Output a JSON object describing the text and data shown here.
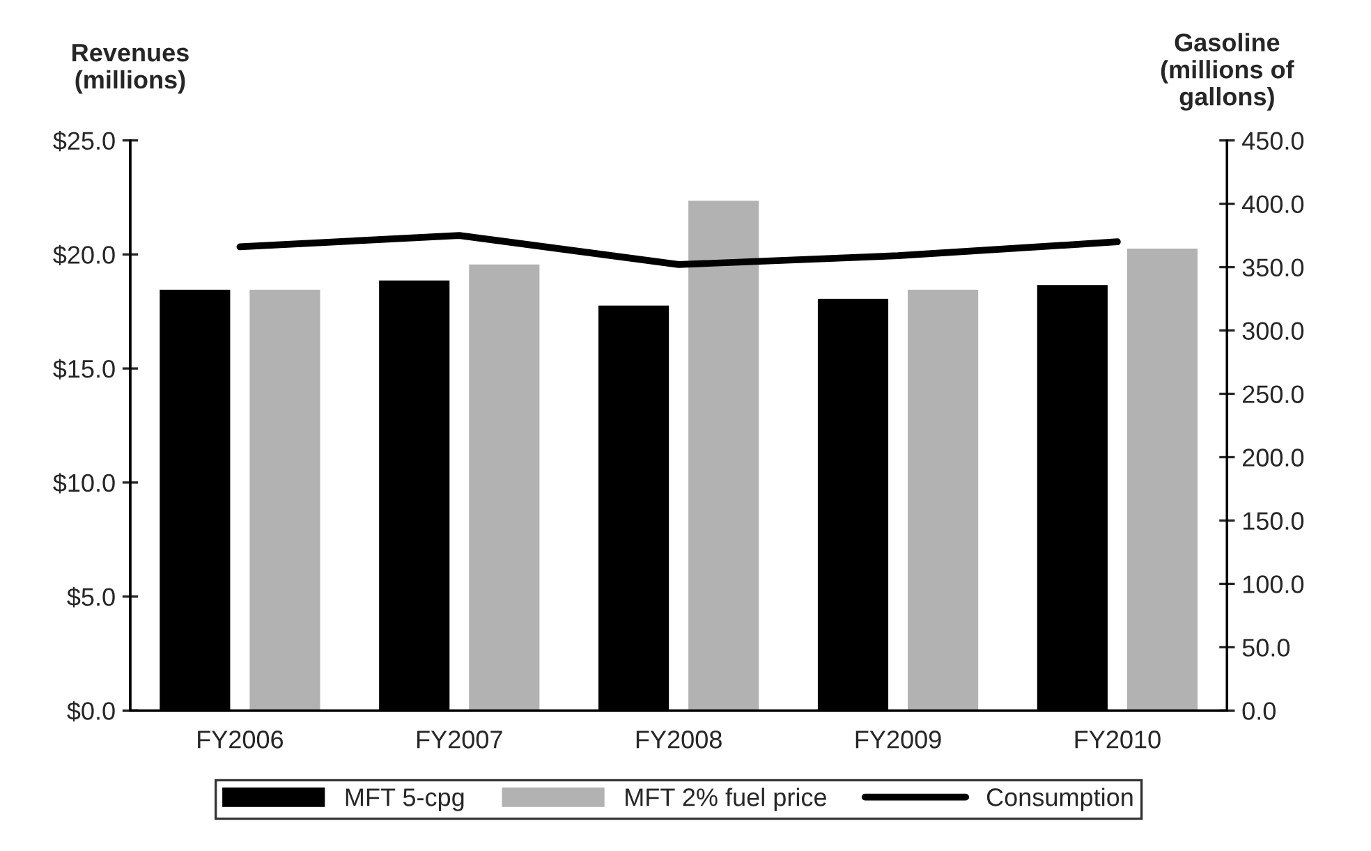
{
  "chart_data": {
    "type": "bar",
    "ylabel": "Revenues\n(millions)",
    "y2label": "Gasoline\n(millions of\ngallons)",
    "categories": [
      "FY2006",
      "FY2007",
      "FY2008",
      "FY2009",
      "FY2010"
    ],
    "series": [
      {
        "name": "MFT 5-cpg",
        "color": "#000000",
        "values": [
          18.5,
          18.9,
          17.8,
          18.1,
          18.7
        ]
      },
      {
        "name": "MFT 2% fuel price",
        "color": "#b2b2b2",
        "values": [
          18.5,
          19.6,
          22.4,
          18.5,
          20.3
        ]
      },
      {
        "name": "Consumption",
        "type": "line",
        "axis": "y2",
        "color": "#000000",
        "values": [
          366,
          375,
          352,
          359,
          370
        ]
      }
    ],
    "ylim": [
      0,
      25
    ],
    "yticks": [
      {
        "value": 0,
        "label": "$0.0"
      },
      {
        "value": 5,
        "label": "$5.0"
      },
      {
        "value": 10,
        "label": "$10.0"
      },
      {
        "value": 15,
        "label": "$15.0"
      },
      {
        "value": 20,
        "label": "$20.0"
      },
      {
        "value": 25,
        "label": "$25.0"
      }
    ],
    "y2lim": [
      0,
      450
    ],
    "y2ticks": [
      {
        "value": 0,
        "label": "0.0"
      },
      {
        "value": 50,
        "label": "50.0"
      },
      {
        "value": 100,
        "label": "100.0"
      },
      {
        "value": 150,
        "label": "150.0"
      },
      {
        "value": 200,
        "label": "200.0"
      },
      {
        "value": 250,
        "label": "250.0"
      },
      {
        "value": 300,
        "label": "300.0"
      },
      {
        "value": 350,
        "label": "350.0"
      },
      {
        "value": 400,
        "label": "400.0"
      },
      {
        "value": 450,
        "label": "450.0"
      }
    ],
    "grid": false,
    "legend": "bottom"
  }
}
